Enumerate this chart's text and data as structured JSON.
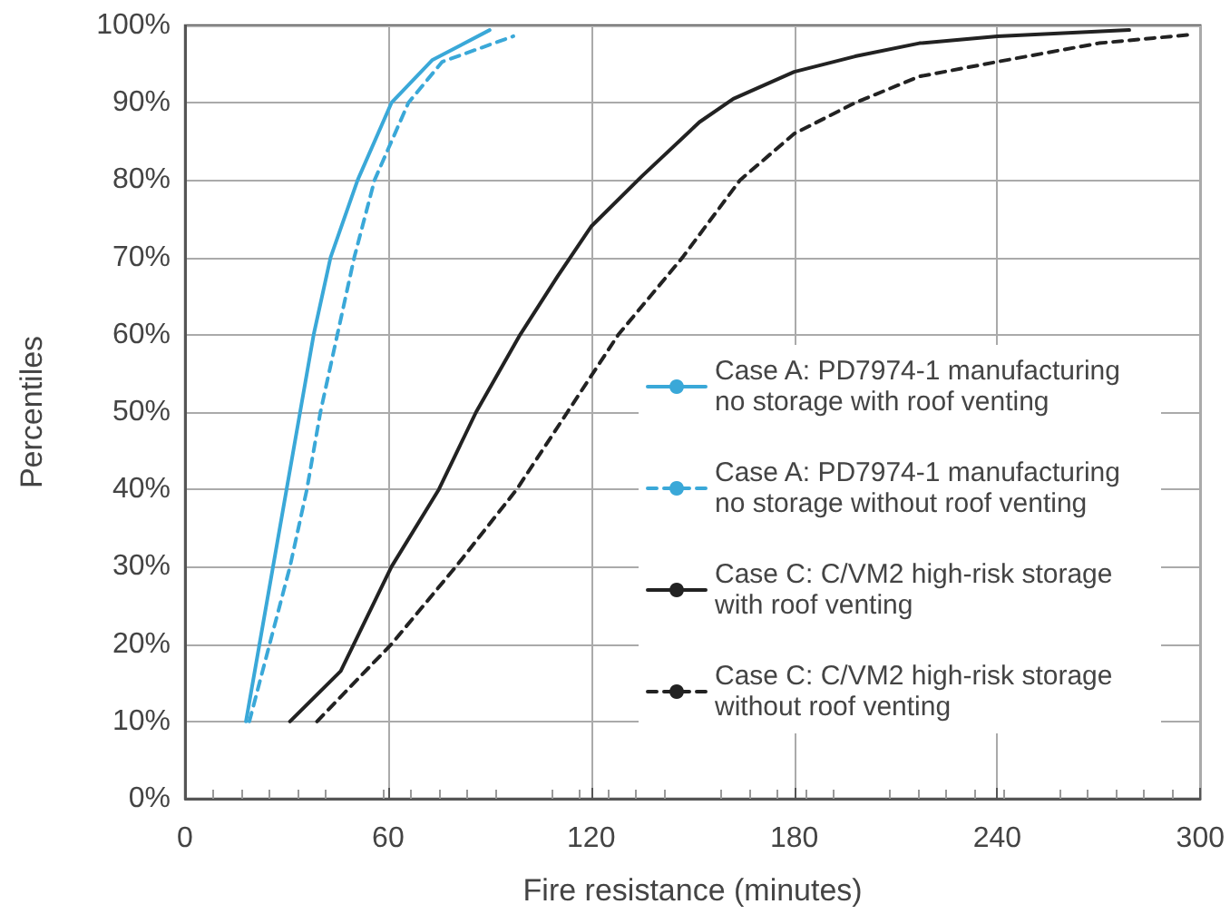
{
  "chart_data": {
    "type": "line",
    "xlabel": "Fire resistance (minutes)",
    "ylabel": "Percentiles",
    "xlim": [
      0,
      300
    ],
    "xticks": [
      0,
      60,
      120,
      180,
      240,
      300
    ],
    "ylim": [
      0,
      100
    ],
    "yticks": [
      {
        "value": 0,
        "label": "0%"
      },
      {
        "value": 10,
        "label": "10%"
      },
      {
        "value": 20,
        "label": "20%"
      },
      {
        "value": 30,
        "label": "30%"
      },
      {
        "value": 40,
        "label": "40%"
      },
      {
        "value": 50,
        "label": "50%"
      },
      {
        "value": 60,
        "label": "60%"
      },
      {
        "value": 70,
        "label": "70%"
      },
      {
        "value": 80,
        "label": "80%"
      },
      {
        "value": 90,
        "label": "90%"
      },
      {
        "value": 100,
        "label": "100%"
      }
    ],
    "grid": true,
    "legend": "right",
    "marker": "none",
    "series": [
      {
        "name": "Case A: PD7974-1 manufacturing no storage with roof venting",
        "color": "#3aa8d8",
        "line_style": "solid",
        "x": [
          18,
          22,
          26,
          30,
          34,
          38,
          43,
          51,
          61,
          73,
          90
        ],
        "values": [
          10,
          20,
          30,
          40,
          50,
          60,
          70,
          80,
          90,
          95.5,
          99.4
        ]
      },
      {
        "name": "Case A: PD7974-1 manufacturing no storage without roof venting",
        "color": "#3aa8d8",
        "line_style": "dashed",
        "x": [
          19,
          25,
          31,
          36,
          40,
          45,
          50,
          56,
          66,
          76,
          97
        ],
        "values": [
          10,
          20,
          30,
          40,
          50,
          60,
          70,
          80,
          90,
          95.3,
          98.6
        ]
      },
      {
        "name": "Case C: C/VM2 high-risk storage with roof venting",
        "color": "#222222",
        "line_style": "solid",
        "x": [
          31,
          46,
          61,
          75,
          86,
          99,
          110,
          120,
          135,
          152,
          162,
          180,
          198,
          217,
          240,
          279
        ],
        "values": [
          10,
          16.5,
          30,
          40,
          50,
          60,
          67.5,
          74,
          80.5,
          87.5,
          90.5,
          94,
          96,
          97.7,
          98.6,
          99.4
        ]
      },
      {
        "name": "Case C: C/VM2 high-risk storage without roof venting",
        "color": "#222222",
        "line_style": "dashed",
        "x": [
          39,
          61,
          80,
          98,
          113,
          128,
          147,
          164,
          180,
          198,
          217,
          240,
          270,
          297
        ],
        "values": [
          10,
          20,
          30,
          40,
          50,
          60,
          70,
          80,
          86,
          90,
          93.4,
          95.3,
          97.7,
          98.8
        ]
      }
    ]
  }
}
